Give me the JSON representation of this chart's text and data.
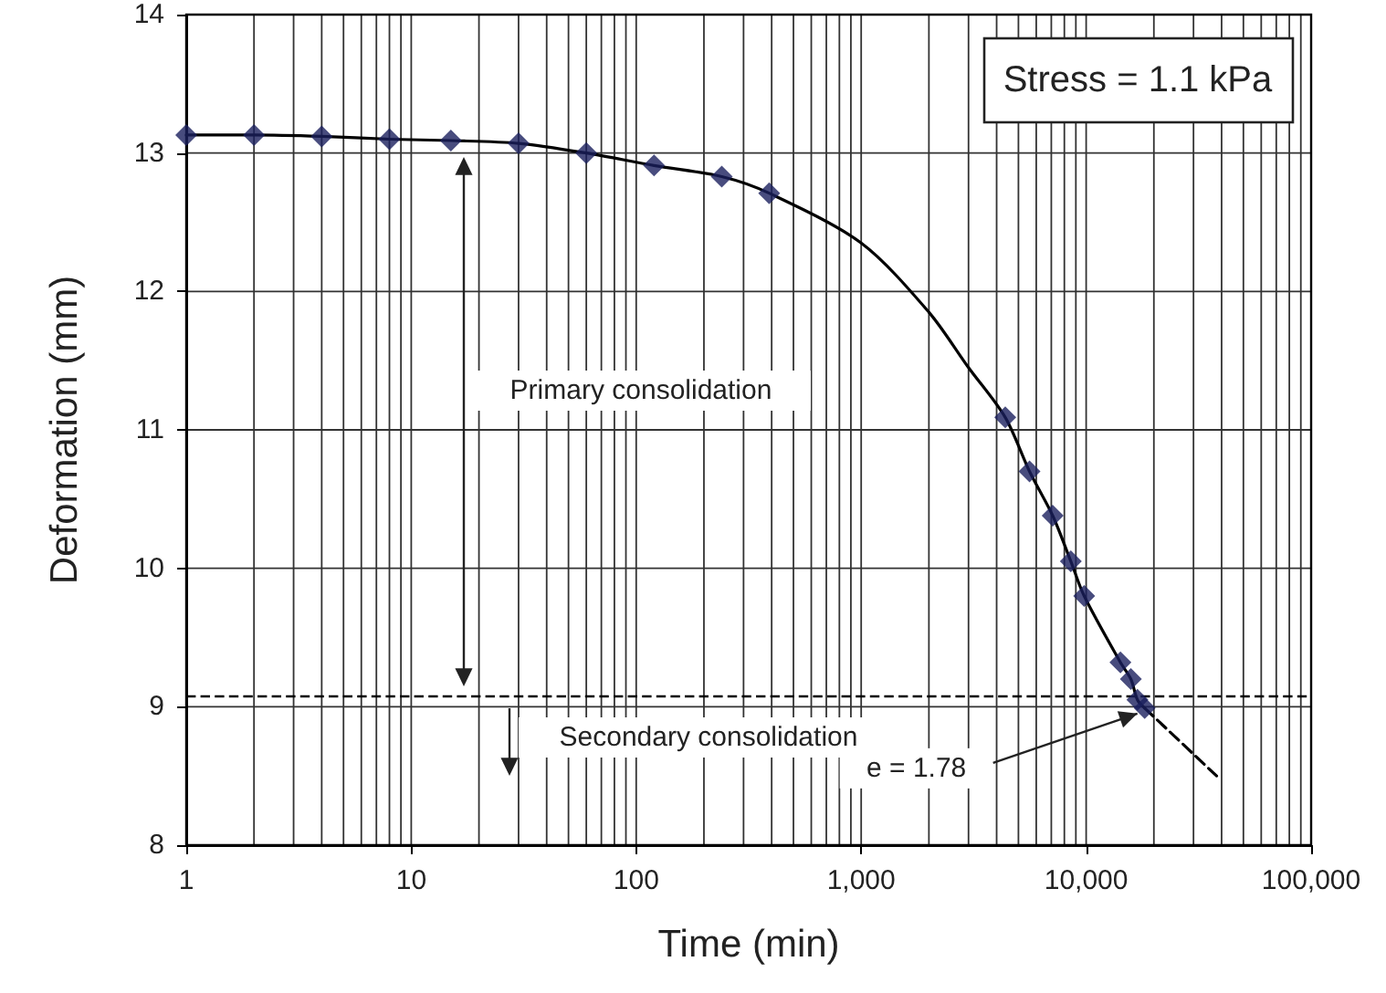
{
  "chart_data": {
    "type": "scatter",
    "xlabel": "Time (min)",
    "ylabel": "Deformation (mm)",
    "log": "x",
    "grid": true,
    "marker": "diamond",
    "xlim": [
      1,
      100000
    ],
    "xticks": [
      1,
      10,
      100,
      {
        "value": 1000,
        "label": "1,000"
      },
      {
        "value": 10000,
        "label": "10,000"
      },
      {
        "value": 100000,
        "label": "100,000"
      }
    ],
    "ylim": [
      8,
      14
    ],
    "yticks": [
      8,
      9,
      10,
      11,
      12,
      13,
      14
    ],
    "series": [
      {
        "color": "#1a1f5e",
        "x": [
          1,
          2,
          4,
          8,
          15,
          30,
          60,
          120,
          240,
          390,
          4370,
          5600,
          7100,
          8550,
          9800,
          14200,
          15800,
          16900,
          18200
        ],
        "values": [
          13.13,
          13.13,
          13.12,
          13.1,
          13.09,
          13.07,
          13.0,
          12.91,
          12.83,
          12.71,
          11.09,
          10.7,
          10.38,
          10.05,
          9.8,
          9.32,
          9.2,
          9.05,
          8.99
        ]
      },
      {
        "type": "line",
        "color": "#000000",
        "marker": "none",
        "line_style": "solid",
        "x": [
          1,
          2,
          4,
          8,
          15,
          30,
          60,
          120,
          240,
          390,
          1000,
          2000,
          3000,
          4370,
          5600,
          7100,
          8550,
          9800,
          14200,
          15800,
          16900,
          18200
        ],
        "values": [
          13.13,
          13.13,
          13.12,
          13.1,
          13.09,
          13.07,
          13.0,
          12.91,
          12.83,
          12.71,
          12.35,
          11.85,
          11.45,
          11.09,
          10.7,
          10.38,
          10.05,
          9.8,
          9.32,
          9.2,
          9.05,
          8.99
        ]
      },
      {
        "type": "line",
        "color": "#000000",
        "marker": "none",
        "line_style": "dashed",
        "x": [
          18200,
          38000
        ],
        "values": [
          8.99,
          8.5
        ]
      }
    ],
    "ref_lines": [
      {
        "axis": "y",
        "value": 9.08,
        "color": "#000000",
        "line_style": "dashed"
      }
    ],
    "annotations": [
      "Stress = 1.1 kPa",
      "Primary consolidation",
      "Secondary consolidation",
      {
        "text": "e = 1.78",
        "x": 18200,
        "y": 8.99
      }
    ]
  }
}
